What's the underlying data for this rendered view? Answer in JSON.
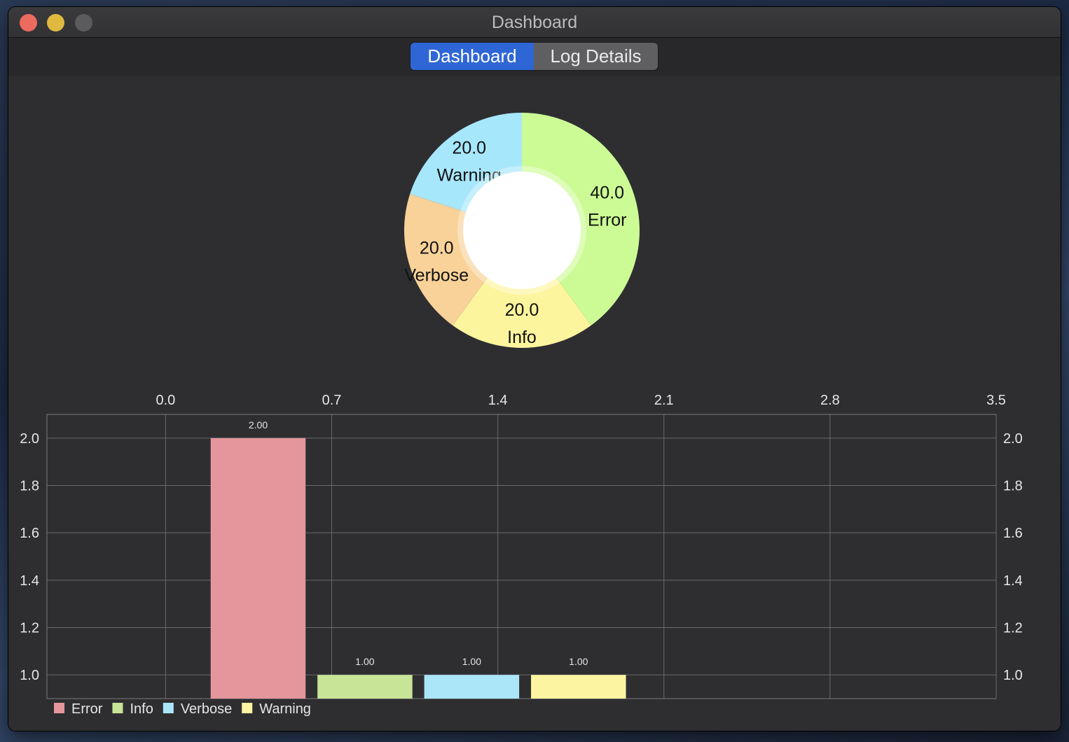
{
  "window": {
    "title": "Dashboard"
  },
  "tabs": [
    {
      "label": "Dashboard",
      "active": true
    },
    {
      "label": "Log Details",
      "active": false
    }
  ],
  "colors": {
    "error_pie": "#ccfb95",
    "info_pie": "#fdf59d",
    "verbose_pie": "#f8d298",
    "warning_pie": "#a7e7fb",
    "error_bar": "#e4969c",
    "info_bar": "#c8e497",
    "verbose_bar": "#abe5f8",
    "warning_bar": "#fcf4a0",
    "tab_active": "#2f66d6"
  },
  "chart_data": [
    {
      "type": "pie",
      "style": "donut",
      "slices": [
        {
          "label": "Error",
          "value": 40.0,
          "value_label": "40.0",
          "color": "#ccfb95"
        },
        {
          "label": "Info",
          "value": 20.0,
          "value_label": "20.0",
          "color": "#fdf59d"
        },
        {
          "label": "Verbose",
          "value": 20.0,
          "value_label": "20.0",
          "color": "#f8d298"
        },
        {
          "label": "Warning",
          "value": 20.0,
          "value_label": "20.0",
          "color": "#a7e7fb"
        }
      ]
    },
    {
      "type": "bar",
      "series": [
        {
          "name": "Error",
          "x": 0.39,
          "value": 2.0,
          "value_label": "2.00",
          "color": "#e4969c"
        },
        {
          "name": "Info",
          "x": 0.84,
          "value": 1.0,
          "value_label": "1.00",
          "color": "#c8e497"
        },
        {
          "name": "Verbose",
          "x": 1.29,
          "value": 1.0,
          "value_label": "1.00",
          "color": "#abe5f8"
        },
        {
          "name": "Warning",
          "x": 1.74,
          "value": 1.0,
          "value_label": "1.00",
          "color": "#fcf4a0"
        }
      ],
      "bar_width": 0.4,
      "x_ticks": [
        "0.0",
        "0.7",
        "1.4",
        "2.1",
        "2.8",
        "3.5"
      ],
      "x_tick_values": [
        0.0,
        0.7,
        1.4,
        2.1,
        2.8,
        3.5
      ],
      "xlim": [
        -0.5,
        3.5
      ],
      "y_ticks": [
        "1.0",
        "1.2",
        "1.4",
        "1.6",
        "1.8",
        "2.0"
      ],
      "y_tick_values": [
        1.0,
        1.2,
        1.4,
        1.6,
        1.8,
        2.0
      ],
      "ylim": [
        0.9,
        2.1
      ],
      "x_axis_position": "top",
      "y_axis_position": "both",
      "grid": true,
      "legend_position": "bottom-left",
      "legend": [
        "Error",
        "Info",
        "Verbose",
        "Warning"
      ]
    }
  ]
}
